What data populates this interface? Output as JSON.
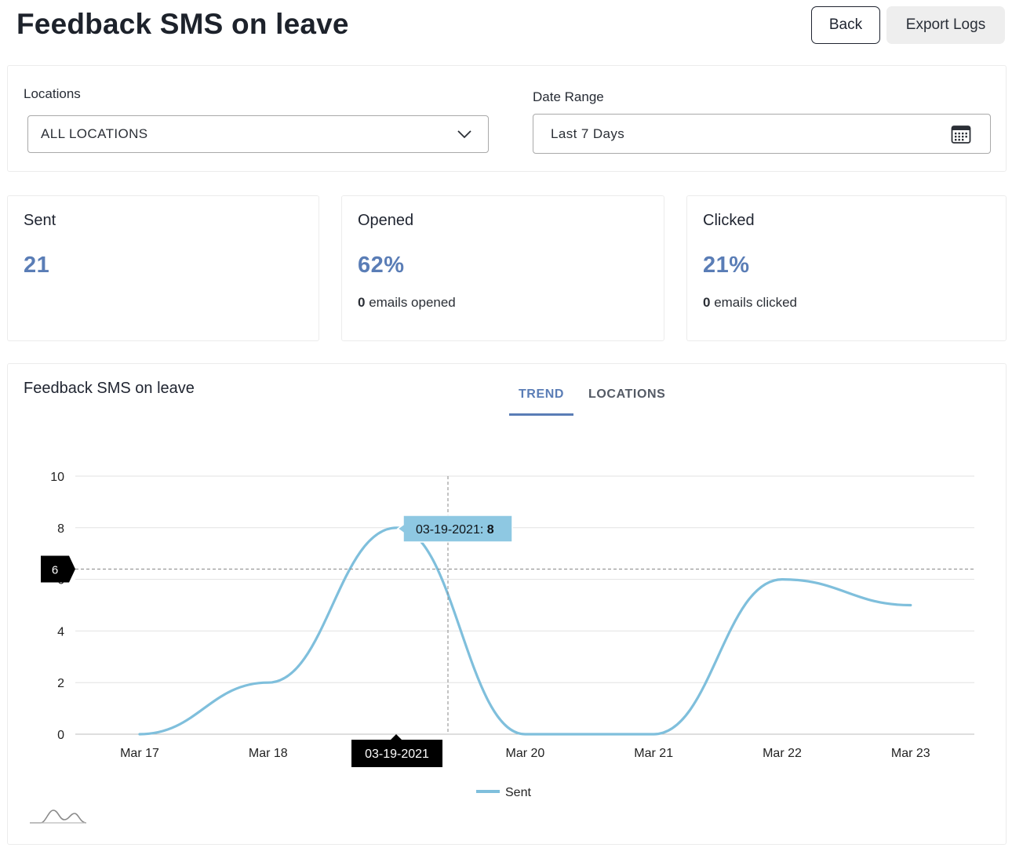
{
  "header": {
    "title": "Feedback SMS on leave",
    "back_label": "Back",
    "export_label": "Export Logs"
  },
  "filters": {
    "locations_label": "Locations",
    "locations_value": "ALL LOCATIONS",
    "date_label": "Date Range",
    "date_value": "Last 7 Days"
  },
  "stats": {
    "sent": {
      "title": "Sent",
      "value": "21"
    },
    "opened": {
      "title": "Opened",
      "value": "62%",
      "count": "0",
      "sub": " emails opened"
    },
    "clicked": {
      "title": "Clicked",
      "value": "21%",
      "count": "0",
      "sub": " emails clicked"
    }
  },
  "chart_panel": {
    "title": "Feedback SMS on leave",
    "tabs": [
      "TREND",
      "LOCATIONS"
    ],
    "active_tab": "TREND"
  },
  "chart_data": {
    "type": "line",
    "categories": [
      "Mar 17",
      "Mar 18",
      "03-19-2021",
      "Mar 20",
      "Mar 21",
      "Mar 22",
      "Mar 23"
    ],
    "series": [
      {
        "name": "Sent",
        "values": [
          0,
          2,
          8,
          0,
          0,
          6,
          5
        ],
        "color": "#7fbfdc"
      }
    ],
    "ylim": [
      0,
      10
    ],
    "yticks": [
      0,
      2,
      4,
      6,
      8,
      10
    ],
    "grid": true,
    "legend": "bottom-center",
    "tooltip": {
      "date": "03-19-2021",
      "value": "8"
    },
    "crosshair": {
      "y_label": "6",
      "x_label": "03-19-2021"
    }
  }
}
